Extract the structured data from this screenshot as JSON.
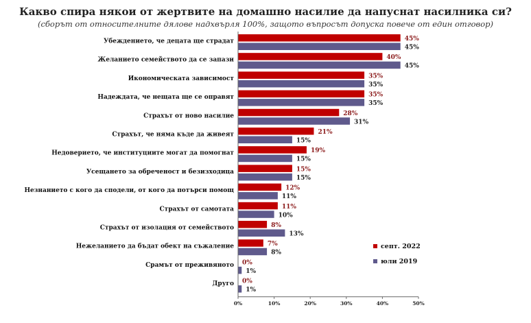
{
  "chart_data": {
    "type": "bar",
    "orientation": "horizontal",
    "title": "Какво спира някои от жертвите на домашно насилие да напуснат насилника си?",
    "subtitle": "(сборът от относителните дялове надхвърля 100%, защото въпросът допуска повече от един отговор)",
    "categories": [
      "Убеждението, че децата ще страдат",
      "Желанието семейството да се запази",
      "Икономическата зависимост",
      "Надеждата, че нещата ще се оправят",
      "Страхът от ново насилие",
      "Страхът, че няма къде да живеят",
      "Недоверието, че институциите могат да помогнат",
      "Усещането за обреченост и безизходица",
      "Незнанието с кого да сподели, от кого да потърси помощ",
      "Страхът от самотата",
      "Страхът от изолация от семейството",
      "Нежеланието да бъдат обект на съжаление",
      "Срамът от преживяното",
      "Друго"
    ],
    "series": [
      {
        "name": "септ. 2022",
        "color": "#c00000",
        "values": [
          45,
          40,
          35,
          35,
          28,
          21,
          19,
          15,
          12,
          11,
          8,
          7,
          0,
          0
        ],
        "labels": [
          "45%",
          "40%",
          "35%",
          "35%",
          "28%",
          "21%",
          "19%",
          "15%",
          "12%",
          "11%",
          "8%",
          "7%",
          "0%",
          "0%"
        ]
      },
      {
        "name": "юли 2019",
        "color": "#5f5a8c",
        "values": [
          45,
          45,
          35,
          35,
          31,
          15,
          15,
          15,
          11,
          10,
          13,
          8,
          1,
          1
        ],
        "labels": [
          "45%",
          "45%",
          "35%",
          "35%",
          "31%",
          "15%",
          "15%",
          "15%",
          "11%",
          "10%",
          "13%",
          "8%",
          "1%",
          "1%"
        ]
      }
    ],
    "xlim": [
      0,
      50
    ],
    "xticks": [
      0,
      10,
      20,
      30,
      40,
      50
    ],
    "xtick_labels": [
      "0%",
      "10%",
      "20%",
      "30%",
      "40%",
      "50%"
    ],
    "legend": {
      "position": "bottom-right"
    },
    "grid": false
  }
}
